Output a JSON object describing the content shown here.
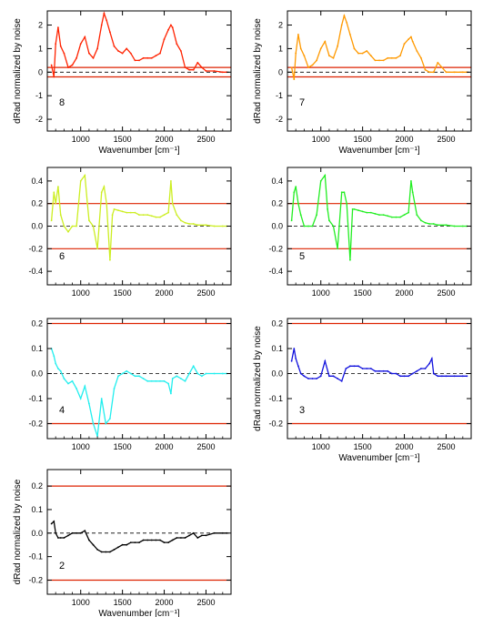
{
  "chart_data": [
    {
      "type": "line",
      "panel_label": "8",
      "color": "#ff2200",
      "xlabel": "Wavenumber [cm⁻¹]",
      "ylabel": "dRad normalized by noise",
      "xlim": [
        600,
        2800
      ],
      "ylim": [
        -2.5,
        2.6
      ],
      "xticks": [
        "1000",
        "1500",
        "2000",
        "2500"
      ],
      "yticks": [
        "-2",
        "-1",
        "0",
        "1",
        "2"
      ],
      "threshold_lines": [
        0.2,
        -0.2
      ],
      "zero_line": 0,
      "series": [
        {
          "x": [
            650,
            680,
            700,
            730,
            760,
            800,
            850,
            900,
            950,
            1000,
            1050,
            1100,
            1150,
            1200,
            1250,
            1280,
            1310,
            1350,
            1400,
            1450,
            1500,
            1550,
            1600,
            1650,
            1700,
            1750,
            1800,
            1850,
            1900,
            1950,
            2000,
            2050,
            2080,
            2100,
            2150,
            2200,
            2250,
            2300,
            2350,
            2400,
            2450,
            2500,
            2600,
            2700,
            2750
          ],
          "y": [
            0.3,
            -0.2,
            1.2,
            1.9,
            1.1,
            0.8,
            0.2,
            0.3,
            0.6,
            1.2,
            1.5,
            0.8,
            0.6,
            1.0,
            2.0,
            2.5,
            2.2,
            1.7,
            1.1,
            0.9,
            0.8,
            1.0,
            0.8,
            0.5,
            0.5,
            0.6,
            0.6,
            0.6,
            0.7,
            0.8,
            1.4,
            1.8,
            2.0,
            1.9,
            1.2,
            0.9,
            0.2,
            0.1,
            0.1,
            0.4,
            0.2,
            0.05,
            0.05,
            0.0,
            0.0
          ]
        }
      ]
    },
    {
      "type": "line",
      "panel_label": "7",
      "color": "#ff9900",
      "xlabel": "Wavenumber [cm⁻¹]",
      "ylabel": "dRad normalized by noise",
      "xlim": [
        600,
        2800
      ],
      "ylim": [
        -2.5,
        2.6
      ],
      "xticks": [
        "1000",
        "1500",
        "2000",
        "2500"
      ],
      "yticks": [
        "-2",
        "-1",
        "0",
        "1",
        "2"
      ],
      "threshold_lines": [
        0.2,
        -0.2
      ],
      "zero_line": 0,
      "series": [
        {
          "x": [
            650,
            680,
            700,
            730,
            760,
            800,
            850,
            900,
            950,
            1000,
            1050,
            1100,
            1150,
            1200,
            1250,
            1280,
            1310,
            1350,
            1400,
            1450,
            1500,
            1550,
            1600,
            1650,
            1700,
            1750,
            1800,
            1850,
            1900,
            1950,
            2000,
            2050,
            2080,
            2100,
            2150,
            2200,
            2250,
            2300,
            2350,
            2400,
            2450,
            2500,
            2600,
            2700,
            2750
          ],
          "y": [
            0.2,
            -0.3,
            0.8,
            1.6,
            1.0,
            0.7,
            0.2,
            0.3,
            0.5,
            1.0,
            1.3,
            0.7,
            0.6,
            1.1,
            2.0,
            2.4,
            2.1,
            1.6,
            1.0,
            0.8,
            0.8,
            0.9,
            0.7,
            0.5,
            0.5,
            0.5,
            0.6,
            0.6,
            0.6,
            0.7,
            1.2,
            1.4,
            1.5,
            1.3,
            0.9,
            0.6,
            0.1,
            0.0,
            0.0,
            0.4,
            0.2,
            0.0,
            0.0,
            0.0,
            0.0
          ]
        }
      ]
    },
    {
      "type": "line",
      "panel_label": "6",
      "color": "#ccee22",
      "xlabel": "",
      "ylabel": "",
      "xlim": [
        600,
        2800
      ],
      "ylim": [
        -0.52,
        0.52
      ],
      "xticks": [
        "1000",
        "1500",
        "2000",
        "2500"
      ],
      "yticks": [
        "-0.4",
        "-0.2",
        "0.0",
        "0.2",
        "0.4"
      ],
      "threshold_lines": [
        0.2,
        -0.2
      ],
      "zero_line": 0,
      "series": [
        {
          "x": [
            650,
            680,
            700,
            730,
            760,
            800,
            850,
            900,
            950,
            1000,
            1050,
            1080,
            1100,
            1150,
            1200,
            1250,
            1280,
            1310,
            1350,
            1380,
            1400,
            1450,
            1500,
            1550,
            1600,
            1650,
            1700,
            1750,
            1800,
            1850,
            1900,
            1950,
            2000,
            2050,
            2080,
            2100,
            2150,
            2200,
            2250,
            2300,
            2350,
            2400,
            2500,
            2600,
            2700,
            2750
          ],
          "y": [
            0.05,
            0.3,
            0.2,
            0.35,
            0.1,
            0.0,
            -0.05,
            0.0,
            0.0,
            0.4,
            0.45,
            0.2,
            0.05,
            0.0,
            -0.2,
            0.3,
            0.35,
            0.2,
            -0.3,
            0.1,
            0.15,
            0.14,
            0.13,
            0.12,
            0.12,
            0.12,
            0.1,
            0.1,
            0.1,
            0.09,
            0.08,
            0.08,
            0.1,
            0.12,
            0.4,
            0.2,
            0.1,
            0.05,
            0.03,
            0.02,
            0.02,
            0.01,
            0.01,
            0.0,
            0.0,
            0.0
          ]
        }
      ]
    },
    {
      "type": "line",
      "panel_label": "5",
      "color": "#22ee22",
      "xlabel": "",
      "ylabel": "",
      "xlim": [
        600,
        2800
      ],
      "ylim": [
        -0.52,
        0.52
      ],
      "xticks": [
        "1000",
        "1500",
        "2000",
        "2500"
      ],
      "yticks": [
        "-0.4",
        "-0.2",
        "0.0",
        "0.2",
        "0.4"
      ],
      "threshold_lines": [
        0.2,
        -0.2
      ],
      "zero_line": 0,
      "series": [
        {
          "x": [
            650,
            680,
            700,
            730,
            760,
            800,
            850,
            900,
            950,
            1000,
            1050,
            1080,
            1100,
            1150,
            1200,
            1250,
            1280,
            1310,
            1350,
            1380,
            1400,
            1450,
            1500,
            1550,
            1600,
            1650,
            1700,
            1750,
            1800,
            1850,
            1900,
            1950,
            2000,
            2050,
            2080,
            2100,
            2150,
            2200,
            2250,
            2300,
            2350,
            2400,
            2500,
            2600,
            2700,
            2750
          ],
          "y": [
            0.05,
            0.3,
            0.35,
            0.2,
            0.1,
            0.0,
            0.0,
            0.0,
            0.1,
            0.4,
            0.45,
            0.15,
            0.05,
            0.0,
            -0.2,
            0.3,
            0.3,
            0.2,
            -0.3,
            0.15,
            0.15,
            0.14,
            0.13,
            0.12,
            0.12,
            0.11,
            0.1,
            0.1,
            0.09,
            0.08,
            0.08,
            0.08,
            0.1,
            0.12,
            0.4,
            0.3,
            0.1,
            0.05,
            0.03,
            0.02,
            0.02,
            0.01,
            0.01,
            0.0,
            0.0,
            0.0
          ]
        }
      ]
    },
    {
      "type": "line",
      "panel_label": "4",
      "color": "#22eeee",
      "xlabel": "",
      "ylabel": "",
      "xlim": [
        600,
        2800
      ],
      "ylim": [
        -0.26,
        0.22
      ],
      "xticks": [
        "1000",
        "1500",
        "2000",
        "2500"
      ],
      "yticks": [
        "-0.2",
        "-0.1",
        "0.0",
        "0.1",
        "0.2"
      ],
      "threshold_lines": [
        0.2,
        -0.2
      ],
      "zero_line": 0,
      "series": [
        {
          "x": [
            650,
            680,
            700,
            730,
            760,
            800,
            850,
            900,
            950,
            1000,
            1050,
            1100,
            1150,
            1200,
            1250,
            1300,
            1350,
            1400,
            1450,
            1500,
            1550,
            1600,
            1650,
            1700,
            1750,
            1800,
            1850,
            1900,
            1950,
            2000,
            2050,
            2080,
            2100,
            2150,
            2200,
            2250,
            2300,
            2350,
            2400,
            2450,
            2500,
            2600,
            2700,
            2750
          ],
          "y": [
            0.1,
            0.07,
            0.04,
            0.02,
            0.01,
            -0.02,
            -0.04,
            -0.03,
            -0.06,
            -0.1,
            -0.05,
            -0.12,
            -0.2,
            -0.25,
            -0.1,
            -0.2,
            -0.18,
            -0.06,
            -0.01,
            0.0,
            0.01,
            0.0,
            -0.01,
            -0.01,
            -0.02,
            -0.03,
            -0.03,
            -0.03,
            -0.03,
            -0.03,
            -0.04,
            -0.08,
            -0.02,
            -0.01,
            -0.02,
            -0.03,
            0.0,
            0.03,
            0.0,
            -0.01,
            0.0,
            0.0,
            0.0,
            0.0
          ]
        }
      ]
    },
    {
      "type": "line",
      "panel_label": "3",
      "color": "#1111dd",
      "xlabel": "Wavenumber [cm⁻¹]",
      "ylabel": "dRad normalized by noise",
      "xlim": [
        600,
        2800
      ],
      "ylim": [
        -0.26,
        0.22
      ],
      "xticks": [
        "1000",
        "1500",
        "2000",
        "2500"
      ],
      "yticks": [
        "-0.2",
        "-0.1",
        "0.0",
        "0.1",
        "0.2"
      ],
      "threshold_lines": [
        0.2,
        -0.2
      ],
      "zero_line": 0,
      "series": [
        {
          "x": [
            650,
            680,
            700,
            730,
            760,
            800,
            850,
            900,
            950,
            1000,
            1050,
            1100,
            1150,
            1200,
            1250,
            1300,
            1350,
            1400,
            1450,
            1500,
            1550,
            1600,
            1650,
            1700,
            1750,
            1800,
            1850,
            1900,
            1950,
            2000,
            2050,
            2100,
            2150,
            2200,
            2250,
            2300,
            2330,
            2350,
            2400,
            2450,
            2500,
            2600,
            2700,
            2750
          ],
          "y": [
            0.05,
            0.1,
            0.06,
            0.03,
            0.0,
            -0.01,
            -0.02,
            -0.02,
            -0.02,
            -0.01,
            0.05,
            -0.01,
            -0.01,
            -0.02,
            -0.03,
            0.02,
            0.03,
            0.03,
            0.03,
            0.02,
            0.02,
            0.02,
            0.01,
            0.01,
            0.01,
            0.01,
            0.0,
            0.0,
            -0.01,
            -0.01,
            -0.01,
            0.0,
            0.01,
            0.02,
            0.02,
            0.04,
            0.06,
            0.0,
            -0.01,
            -0.01,
            -0.01,
            -0.01,
            -0.01,
            -0.01
          ]
        }
      ]
    },
    {
      "type": "line",
      "panel_label": "2",
      "color": "#000000",
      "xlabel": "Wavenumber [cm⁻¹]",
      "ylabel": "dRad normalized by noise",
      "xlim": [
        600,
        2800
      ],
      "ylim": [
        -0.26,
        0.27
      ],
      "xticks": [
        "1000",
        "1500",
        "2000",
        "2500"
      ],
      "yticks": [
        "-0.2",
        "-0.1",
        "0.0",
        "0.1",
        "0.2"
      ],
      "threshold_lines": [
        0.2,
        -0.2
      ],
      "zero_line": 0,
      "series": [
        {
          "x": [
            650,
            680,
            700,
            730,
            760,
            800,
            850,
            900,
            950,
            1000,
            1050,
            1100,
            1150,
            1200,
            1250,
            1300,
            1350,
            1400,
            1450,
            1500,
            1550,
            1600,
            1650,
            1700,
            1750,
            1800,
            1850,
            1900,
            1950,
            2000,
            2050,
            2100,
            2150,
            2200,
            2250,
            2300,
            2350,
            2400,
            2450,
            2500,
            2600,
            2700,
            2750
          ],
          "y": [
            0.04,
            0.05,
            0.0,
            -0.02,
            -0.02,
            -0.02,
            -0.01,
            0.0,
            0.0,
            0.0,
            0.01,
            -0.03,
            -0.05,
            -0.07,
            -0.08,
            -0.08,
            -0.08,
            -0.07,
            -0.06,
            -0.05,
            -0.05,
            -0.04,
            -0.04,
            -0.04,
            -0.03,
            -0.03,
            -0.03,
            -0.03,
            -0.03,
            -0.04,
            -0.04,
            -0.03,
            -0.02,
            -0.02,
            -0.02,
            -0.01,
            0.0,
            -0.02,
            -0.01,
            -0.01,
            0.0,
            0.0,
            0.0
          ]
        }
      ]
    }
  ]
}
